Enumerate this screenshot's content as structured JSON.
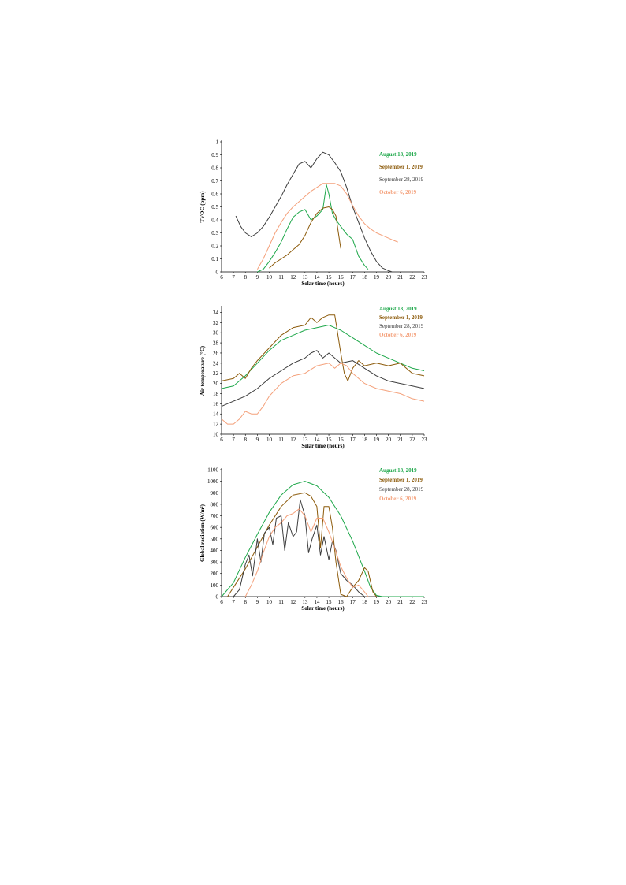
{
  "colors": {
    "aug18": "#1fa84b",
    "sep1": "#8c5a0a",
    "sep28": "#3c3c3c",
    "oct6": "#f4a07a"
  },
  "chart_data": [
    {
      "type": "line",
      "xlabel": "Solar time (hours)",
      "ylabel": "TVOC (ppm)",
      "xlim": [
        6,
        23
      ],
      "ylim": [
        0,
        1
      ],
      "xticks": [
        "6",
        "7",
        "8",
        "9",
        "10",
        "11",
        "12",
        "13",
        "14",
        "15",
        "16",
        "17",
        "18",
        "19",
        "20",
        "21",
        "22",
        "23"
      ],
      "yticks": [
        "0",
        "0.1",
        "0.2",
        "0.3",
        "0.4",
        "0.5",
        "0.6",
        "0.7",
        "0.8",
        "0.9",
        "1"
      ],
      "legend_position": "right",
      "series": [
        {
          "name": "August 18, 2019",
          "color_key": "aug18",
          "x": [
            9.0,
            9.5,
            10.0,
            10.5,
            11.0,
            11.5,
            12.0,
            12.5,
            13.0,
            13.5,
            14.0,
            14.5,
            14.8,
            15.0,
            15.3,
            15.6,
            16.0,
            16.5,
            17.0,
            17.5,
            18.0,
            18.3
          ],
          "y": [
            0.0,
            0.02,
            0.08,
            0.15,
            0.23,
            0.33,
            0.42,
            0.46,
            0.48,
            0.4,
            0.43,
            0.48,
            0.67,
            0.6,
            0.45,
            0.4,
            0.35,
            0.29,
            0.25,
            0.12,
            0.05,
            0.02
          ]
        },
        {
          "name": "September 1, 2019",
          "color_key": "sep1",
          "x": [
            10.0,
            10.5,
            11.0,
            11.5,
            12.0,
            12.5,
            13.0,
            13.5,
            14.0,
            14.5,
            15.0,
            15.3,
            15.6,
            15.8,
            16.0
          ],
          "y": [
            0.03,
            0.07,
            0.1,
            0.13,
            0.17,
            0.21,
            0.28,
            0.38,
            0.45,
            0.49,
            0.5,
            0.48,
            0.43,
            0.3,
            0.18
          ]
        },
        {
          "name": "September 28, 2019",
          "color_key": "sep28",
          "x": [
            7.2,
            7.6,
            8.0,
            8.5,
            9.0,
            9.5,
            10.0,
            10.5,
            11.0,
            11.5,
            12.0,
            12.5,
            13.0,
            13.5,
            14.0,
            14.5,
            15.0,
            15.5,
            16.0,
            16.5,
            17.0,
            17.5,
            18.0,
            18.5,
            19.0,
            19.5,
            20.0,
            20.3
          ],
          "y": [
            0.43,
            0.35,
            0.3,
            0.27,
            0.3,
            0.35,
            0.42,
            0.5,
            0.58,
            0.67,
            0.75,
            0.83,
            0.85,
            0.8,
            0.87,
            0.92,
            0.9,
            0.84,
            0.77,
            0.65,
            0.5,
            0.38,
            0.26,
            0.16,
            0.08,
            0.03,
            0.01,
            0.0
          ]
        },
        {
          "name": "October 6, 2019",
          "color_key": "oct6",
          "x": [
            9.0,
            9.5,
            10.0,
            10.5,
            11.0,
            11.5,
            12.0,
            12.5,
            13.0,
            13.5,
            14.0,
            14.5,
            15.0,
            15.5,
            16.0,
            16.5,
            17.0,
            17.5,
            18.0,
            18.5,
            19.0,
            19.5,
            20.0,
            20.5,
            20.8
          ],
          "y": [
            0.02,
            0.1,
            0.2,
            0.3,
            0.38,
            0.45,
            0.5,
            0.54,
            0.58,
            0.62,
            0.65,
            0.68,
            0.68,
            0.68,
            0.66,
            0.6,
            0.51,
            0.43,
            0.37,
            0.33,
            0.3,
            0.28,
            0.26,
            0.24,
            0.23
          ]
        }
      ]
    },
    {
      "type": "line",
      "xlabel": "Solar time (hours)",
      "ylabel": "Air temperature (°C)",
      "xlim": [
        6,
        23
      ],
      "ylim": [
        10,
        35
      ],
      "xticks": [
        "6",
        "7",
        "8",
        "9",
        "10",
        "11",
        "12",
        "13",
        "14",
        "15",
        "16",
        "17",
        "18",
        "19",
        "20",
        "21",
        "22",
        "23"
      ],
      "yticks": [
        "10",
        "12",
        "14",
        "16",
        "18",
        "20",
        "22",
        "24",
        "26",
        "28",
        "30",
        "32",
        "34"
      ],
      "legend_position": "right",
      "series": [
        {
          "name": "August 18, 2019",
          "color_key": "aug18",
          "x": [
            6,
            7,
            8,
            9,
            10,
            11,
            12,
            13,
            14,
            15,
            15.5,
            16,
            17,
            18,
            19,
            20,
            21,
            22,
            23
          ],
          "y": [
            19,
            19.5,
            21.5,
            24,
            26.5,
            28.5,
            29.5,
            30.5,
            31,
            31.5,
            31,
            30.5,
            29,
            27.5,
            26,
            25,
            24,
            23,
            22.5
          ]
        },
        {
          "name": "September 1, 2019",
          "color_key": "sep1",
          "x": [
            6,
            7,
            7.5,
            8,
            8.5,
            9,
            10,
            11,
            12,
            13,
            13.5,
            14,
            14.5,
            15,
            15.5,
            16,
            16.3,
            16.6,
            17,
            17.5,
            18,
            19,
            20,
            21,
            22,
            23
          ],
          "y": [
            20.5,
            21,
            22,
            21,
            23,
            24.5,
            27,
            29.5,
            31,
            31.5,
            33,
            32,
            33,
            33.5,
            33.5,
            26,
            22,
            20.5,
            23,
            24.5,
            23.5,
            24,
            23.5,
            24,
            22,
            21.5
          ]
        },
        {
          "name": "September 28, 2019",
          "color_key": "sep28",
          "x": [
            6,
            7,
            8,
            9,
            10,
            11,
            12,
            13,
            13.5,
            14,
            14.5,
            15,
            15.5,
            16,
            17,
            18,
            19,
            20,
            21,
            22,
            23
          ],
          "y": [
            15.5,
            16.5,
            17.5,
            19,
            21,
            22.5,
            24,
            25,
            26,
            26.5,
            25,
            26,
            25,
            24,
            24.5,
            23,
            21.5,
            20.5,
            20,
            19.5,
            19
          ]
        },
        {
          "name": "October 6, 2019",
          "color_key": "oct6",
          "x": [
            6,
            6.5,
            7,
            7.5,
            8,
            8.5,
            9,
            9.5,
            10,
            11,
            12,
            13,
            14,
            15,
            15.5,
            16,
            16.5,
            17,
            18,
            19,
            20,
            21,
            22,
            23
          ],
          "y": [
            13,
            12,
            12,
            13,
            14.5,
            14,
            14,
            15.5,
            17.5,
            20,
            21.5,
            22,
            23.5,
            24,
            23,
            24,
            23.5,
            22,
            20,
            19,
            18.5,
            18,
            17,
            16.5
          ]
        }
      ]
    },
    {
      "type": "line",
      "xlabel": "Solar time (hours)",
      "ylabel": "Global radiation (W/m²)",
      "xlim": [
        6,
        23
      ],
      "ylim": [
        0,
        1100
      ],
      "xticks": [
        "6",
        "7",
        "8",
        "9",
        "10",
        "11",
        "12",
        "13",
        "14",
        "15",
        "16",
        "17",
        "18",
        "19",
        "20",
        "21",
        "22",
        "23"
      ],
      "yticks": [
        "0",
        "100",
        "200",
        "300",
        "400",
        "500",
        "600",
        "700",
        "800",
        "900",
        "1000",
        "1100"
      ],
      "legend_position": "right",
      "series": [
        {
          "name": "August 18, 2019",
          "color_key": "aug18",
          "x": [
            6,
            7,
            8,
            9,
            10,
            11,
            12,
            13,
            14,
            15,
            16,
            17,
            18,
            18.5,
            19,
            19.5,
            20,
            21,
            22,
            23
          ],
          "y": [
            0,
            120,
            340,
            540,
            730,
            880,
            970,
            1000,
            960,
            860,
            700,
            480,
            220,
            80,
            10,
            0,
            0,
            0,
            0,
            0
          ]
        },
        {
          "name": "September 1, 2019",
          "color_key": "sep1",
          "x": [
            6.5,
            7,
            8,
            9,
            10,
            11,
            12,
            13,
            13.5,
            14,
            14.3,
            14.6,
            15,
            15.3,
            15.6,
            16,
            16.5,
            17,
            17.5,
            18,
            18.3,
            18.7,
            19
          ],
          "y": [
            0,
            80,
            240,
            430,
            620,
            780,
            880,
            900,
            870,
            780,
            420,
            780,
            780,
            600,
            300,
            20,
            0,
            80,
            140,
            250,
            220,
            40,
            0
          ]
        },
        {
          "name": "September 28, 2019",
          "color_key": "sep28",
          "x": [
            7,
            7.5,
            8,
            8.3,
            8.6,
            9,
            9.3,
            9.6,
            10,
            10.3,
            10.6,
            11,
            11.3,
            11.6,
            12,
            12.3,
            12.6,
            13,
            13.3,
            13.6,
            14,
            14.3,
            14.6,
            15,
            15.3,
            15.6,
            16,
            16.5,
            17,
            17.5,
            18
          ],
          "y": [
            0,
            60,
            280,
            360,
            180,
            500,
            300,
            550,
            600,
            450,
            680,
            700,
            400,
            640,
            520,
            560,
            840,
            700,
            380,
            500,
            620,
            360,
            520,
            320,
            480,
            400,
            200,
            140,
            100,
            40,
            0
          ]
        },
        {
          "name": "October 6, 2019",
          "color_key": "oct6",
          "x": [
            8,
            8.5,
            9,
            9.5,
            10,
            10.5,
            11,
            11.5,
            12,
            12.5,
            13,
            13.5,
            14,
            14.5,
            15,
            15.5,
            16,
            16.5,
            17,
            17.5,
            18,
            18.3
          ],
          "y": [
            0,
            100,
            220,
            380,
            520,
            600,
            640,
            700,
            720,
            760,
            700,
            560,
            680,
            680,
            560,
            420,
            260,
            160,
            80,
            100,
            40,
            0
          ]
        }
      ]
    }
  ]
}
